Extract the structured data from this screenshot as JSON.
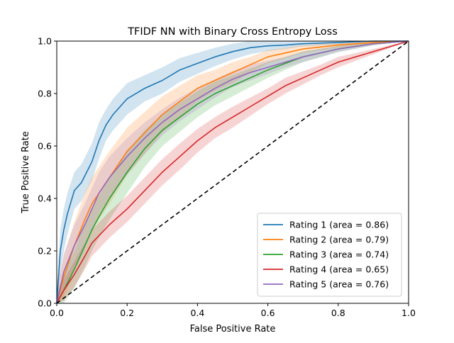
{
  "chart_data": {
    "type": "line",
    "title": "TFIDF NN with Binary Cross Entropy Loss",
    "xlabel": "False Positive Rate",
    "ylabel": "True Positive Rate",
    "xlim": [
      0,
      1
    ],
    "ylim": [
      0,
      1
    ],
    "xticks": [
      "0.0",
      "0.2",
      "0.4",
      "0.6",
      "0.8",
      "1.0"
    ],
    "yticks": [
      "0.0",
      "0.2",
      "0.4",
      "0.6",
      "0.8",
      "1.0"
    ],
    "grid": false,
    "legend_position": "lower-right",
    "diagonal": {
      "x": [
        0,
        1
      ],
      "y": [
        0,
        1
      ],
      "color": "#000000",
      "style": "dashed"
    },
    "series": [
      {
        "name": "Rating 1 (area = 0.86)",
        "color": "#1f77b4",
        "x": [
          0,
          0.01,
          0.02,
          0.03,
          0.05,
          0.07,
          0.1,
          0.12,
          0.14,
          0.16,
          0.2,
          0.25,
          0.3,
          0.35,
          0.4,
          0.45,
          0.5,
          0.55,
          0.6,
          0.65,
          0.7,
          0.8,
          0.9,
          1.0
        ],
        "y": [
          0,
          0.2,
          0.28,
          0.34,
          0.43,
          0.46,
          0.54,
          0.62,
          0.68,
          0.72,
          0.78,
          0.82,
          0.85,
          0.89,
          0.915,
          0.94,
          0.96,
          0.975,
          0.982,
          0.985,
          0.99,
          0.995,
          1.0,
          1.0
        ],
        "band": [
          0.06,
          0.08,
          0.08,
          0.08,
          0.07,
          0.07,
          0.07,
          0.07,
          0.06,
          0.06,
          0.06,
          0.05,
          0.05,
          0.045,
          0.04,
          0.035,
          0.03,
          0.025,
          0.02,
          0.015,
          0.01,
          0.008,
          0.005,
          0
        ]
      },
      {
        "name": "Rating 2 (area = 0.79)",
        "color": "#ff7f0e",
        "x": [
          0,
          0.02,
          0.05,
          0.08,
          0.1,
          0.15,
          0.2,
          0.25,
          0.3,
          0.35,
          0.4,
          0.45,
          0.5,
          0.55,
          0.6,
          0.65,
          0.7,
          0.8,
          0.9,
          1.0
        ],
        "y": [
          0,
          0.1,
          0.22,
          0.32,
          0.38,
          0.48,
          0.58,
          0.65,
          0.72,
          0.77,
          0.82,
          0.85,
          0.88,
          0.91,
          0.94,
          0.955,
          0.97,
          0.985,
          0.995,
          1.0
        ],
        "band": [
          0.06,
          0.08,
          0.09,
          0.1,
          0.1,
          0.1,
          0.09,
          0.08,
          0.07,
          0.06,
          0.05,
          0.04,
          0.04,
          0.03,
          0.025,
          0.02,
          0.015,
          0.01,
          0.005,
          0
        ]
      },
      {
        "name": "Rating 3 (area = 0.74)",
        "color": "#2ca02c",
        "x": [
          0,
          0.02,
          0.05,
          0.08,
          0.1,
          0.12,
          0.15,
          0.2,
          0.25,
          0.3,
          0.35,
          0.4,
          0.45,
          0.5,
          0.55,
          0.6,
          0.65,
          0.7,
          0.8,
          0.9,
          1.0
        ],
        "y": [
          0,
          0.05,
          0.13,
          0.22,
          0.28,
          0.33,
          0.4,
          0.5,
          0.59,
          0.66,
          0.71,
          0.76,
          0.8,
          0.83,
          0.86,
          0.89,
          0.915,
          0.94,
          0.97,
          0.99,
          1.0
        ],
        "band": [
          0.04,
          0.06,
          0.07,
          0.08,
          0.08,
          0.08,
          0.08,
          0.08,
          0.07,
          0.06,
          0.055,
          0.05,
          0.045,
          0.04,
          0.035,
          0.03,
          0.025,
          0.02,
          0.012,
          0.006,
          0
        ]
      },
      {
        "name": "Rating 4 (area = 0.65)",
        "color": "#d62728",
        "x": [
          0,
          0.02,
          0.05,
          0.08,
          0.1,
          0.15,
          0.2,
          0.25,
          0.3,
          0.35,
          0.4,
          0.45,
          0.5,
          0.55,
          0.6,
          0.65,
          0.7,
          0.75,
          0.8,
          0.85,
          0.9,
          0.95,
          1.0
        ],
        "y": [
          0,
          0.05,
          0.11,
          0.18,
          0.23,
          0.3,
          0.36,
          0.43,
          0.5,
          0.56,
          0.62,
          0.67,
          0.71,
          0.75,
          0.79,
          0.83,
          0.86,
          0.89,
          0.92,
          0.94,
          0.96,
          0.98,
          1.0
        ],
        "band": [
          0.03,
          0.04,
          0.05,
          0.05,
          0.05,
          0.05,
          0.05,
          0.05,
          0.05,
          0.05,
          0.045,
          0.04,
          0.04,
          0.035,
          0.03,
          0.03,
          0.025,
          0.02,
          0.02,
          0.015,
          0.01,
          0.005,
          0
        ]
      },
      {
        "name": "Rating 5 (area = 0.76)",
        "color": "#9467bd",
        "x": [
          0,
          0.02,
          0.05,
          0.08,
          0.1,
          0.12,
          0.15,
          0.2,
          0.25,
          0.3,
          0.35,
          0.4,
          0.45,
          0.5,
          0.55,
          0.6,
          0.65,
          0.7,
          0.8,
          0.9,
          1.0
        ],
        "y": [
          0,
          0.12,
          0.22,
          0.3,
          0.36,
          0.42,
          0.48,
          0.56,
          0.63,
          0.69,
          0.74,
          0.78,
          0.82,
          0.855,
          0.88,
          0.9,
          0.92,
          0.94,
          0.97,
          0.99,
          1.0
        ],
        "band": [
          0.05,
          0.07,
          0.08,
          0.08,
          0.08,
          0.08,
          0.08,
          0.07,
          0.06,
          0.05,
          0.045,
          0.04,
          0.035,
          0.03,
          0.03,
          0.025,
          0.02,
          0.02,
          0.012,
          0.006,
          0
        ]
      }
    ]
  }
}
